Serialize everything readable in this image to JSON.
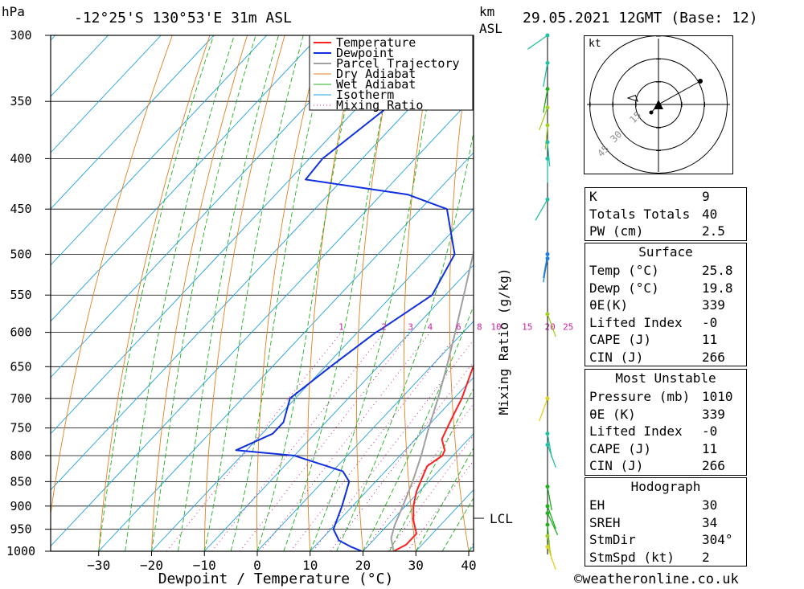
{
  "header": {
    "hpa_label": "hPa",
    "location": "-12°25'S 130°53'E 31m ASL",
    "km_label": "km",
    "asl_label": "ASL",
    "datetime": "29.05.2021 12GMT (Base: 12)"
  },
  "footer": {
    "credit": "©weatheronline.co.uk"
  },
  "colors": {
    "temperature": "#ff2020",
    "dewpoint": "#1030e0",
    "parcel": "#a0a0a0",
    "dry_adiabat": "#e08020",
    "wet_adiabat": "#20b020",
    "isotherm": "#20a0e0",
    "mixing_ratio": "#d020a0"
  },
  "chart_data": {
    "type": "line",
    "subtype": "skew-T log-P sounding",
    "xlabel": "Dewpoint / Temperature (°C)",
    "ylabel": "hPa",
    "secondary_ylabel": "Mixing Ratio (g/kg)",
    "xlim": [
      -40,
      40
    ],
    "ylim": [
      1000,
      300
    ],
    "x_ticks": [
      -30,
      -20,
      -10,
      0,
      10,
      20,
      30,
      40
    ],
    "pressure_levels": [
      300,
      350,
      400,
      450,
      500,
      550,
      600,
      650,
      700,
      750,
      800,
      850,
      900,
      950,
      1000
    ],
    "mixing_ratio_labels": [
      "1",
      "2",
      "3",
      "4",
      "6",
      "8",
      "10",
      "15",
      "20",
      "25"
    ],
    "lcl_label": "LCL",
    "lcl_pressure": 940,
    "legend": [
      "Temperature",
      "Dewpoint",
      "Parcel Trajectory",
      "Dry Adiabat",
      "Wet Adiabat",
      "Isotherm",
      "Mixing Ratio"
    ],
    "series": [
      {
        "name": "Temperature",
        "points": [
          [
            1000,
            25.8
          ],
          [
            985,
            27.0
          ],
          [
            960,
            27.0
          ],
          [
            930,
            24.0
          ],
          [
            900,
            21.5
          ],
          [
            870,
            19.5
          ],
          [
            850,
            18.5
          ],
          [
            820,
            17.0
          ],
          [
            800,
            18.0
          ],
          [
            790,
            17.5
          ],
          [
            770,
            15.0
          ],
          [
            750,
            14.0
          ],
          [
            730,
            13.0
          ],
          [
            700,
            11.5
          ],
          [
            650,
            8.0
          ],
          [
            600,
            4.5
          ],
          [
            575,
            2.0
          ],
          [
            550,
            -1.0
          ],
          [
            500,
            -6.0
          ],
          [
            450,
            -12.5
          ],
          [
            430,
            -15.0
          ],
          [
            420,
            -15.0
          ],
          [
            400,
            -18.0
          ],
          [
            370,
            -23.0
          ]
        ]
      },
      {
        "name": "Dewpoint",
        "points": [
          [
            1000,
            19.8
          ],
          [
            990,
            17.0
          ],
          [
            975,
            13.5
          ],
          [
            950,
            10.5
          ],
          [
            900,
            8.0
          ],
          [
            850,
            5.0
          ],
          [
            830,
            2.0
          ],
          [
            800,
            -10.0
          ],
          [
            790,
            -22.0
          ],
          [
            760,
            -18.0
          ],
          [
            740,
            -18.0
          ],
          [
            700,
            -21.0
          ],
          [
            650,
            -19.0
          ],
          [
            600,
            -16.5
          ],
          [
            595,
            -16.0
          ],
          [
            550,
            -12.5
          ],
          [
            500,
            -15.5
          ],
          [
            450,
            -25.0
          ],
          [
            435,
            -35.0
          ],
          [
            420,
            -57.0
          ],
          [
            400,
            -57.5
          ],
          [
            350,
            -54.0
          ],
          [
            300,
            -53.0
          ]
        ]
      },
      {
        "name": "Parcel Trajectory",
        "points": [
          [
            1000,
            25.8
          ],
          [
            970,
            23.0
          ],
          [
            940,
            21.3
          ],
          [
            900,
            19.5
          ],
          [
            850,
            17.0
          ],
          [
            800,
            14.0
          ],
          [
            750,
            10.5
          ],
          [
            700,
            7.0
          ],
          [
            650,
            3.0
          ],
          [
            600,
            -1.5
          ],
          [
            550,
            -6.5
          ],
          [
            500,
            -12.0
          ],
          [
            450,
            -18.5
          ],
          [
            400,
            -26.0
          ],
          [
            350,
            -34.5
          ],
          [
            320,
            -40.5
          ],
          [
            300,
            -45.5
          ]
        ]
      }
    ]
  },
  "winds": {
    "altitude_label": "km ASL"
  },
  "hodograph": {
    "unit_label": "kt",
    "ring_labels": [
      "15",
      "30",
      "45"
    ]
  },
  "indices": {
    "k_label": "K",
    "k_value": "9",
    "tt_label": "Totals Totals",
    "tt_value": "40",
    "pw_label": "PW (cm)",
    "pw_value": "2.5"
  },
  "surface": {
    "title": "Surface",
    "temp_label": "Temp (°C)",
    "temp_value": "25.8",
    "dewp_label": "Dewp (°C)",
    "dewp_value": "19.8",
    "theta_label": "θE(K)",
    "theta_value": "339",
    "li_label": "Lifted Index",
    "li_value": "-0",
    "cape_label": "CAPE (J)",
    "cape_value": "11",
    "cin_label": "CIN (J)",
    "cin_value": "266"
  },
  "most_unstable": {
    "title": "Most Unstable",
    "pressure_label": "Pressure (mb)",
    "pressure_value": "1010",
    "theta_label": "θE (K)",
    "theta_value": "339",
    "li_label": "Lifted Index",
    "li_value": "-0",
    "cape_label": "CAPE (J)",
    "cape_value": "11",
    "cin_label": "CIN (J)",
    "cin_value": "266"
  },
  "hodograph_table": {
    "title": "Hodograph",
    "eh_label": "EH",
    "eh_value": "30",
    "sreh_label": "SREH",
    "sreh_value": "34",
    "stmdir_label": "StmDir",
    "stmdir_value": "304°",
    "stmspd_label": "StmSpd (kt)",
    "stmspd_value": "2"
  }
}
